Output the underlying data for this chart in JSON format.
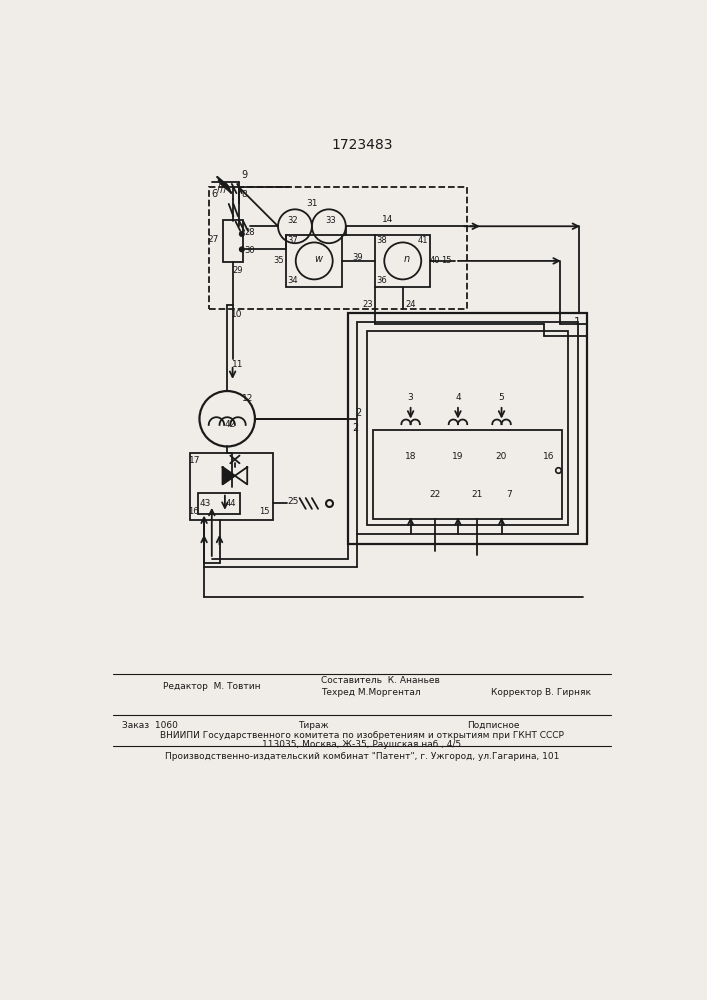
{
  "title": "1723483",
  "bg_color": "#f0ede8",
  "line_color": "#1a1a1a",
  "footer": {
    "editor": "Редактор  М. Товтин",
    "compiler": "Составитель  К. Ананьев",
    "techred": "Техред М.Моргентал",
    "corrector": "Корректор В. Гирняк",
    "order": "Заказ  1060",
    "tirazh": "Тираж",
    "podpisnoe": "Подписное",
    "vniip": "ВНИИПИ Государственного комитета по изобретениям и открытиям при ГКНТ СССР",
    "addr": "113035, Москва, Ж-35, Раушская наб., 4/5",
    "production": "Производственно-издательский комбинат \"Патент\", г. Ужгород, ул.Гагарина, 101"
  }
}
